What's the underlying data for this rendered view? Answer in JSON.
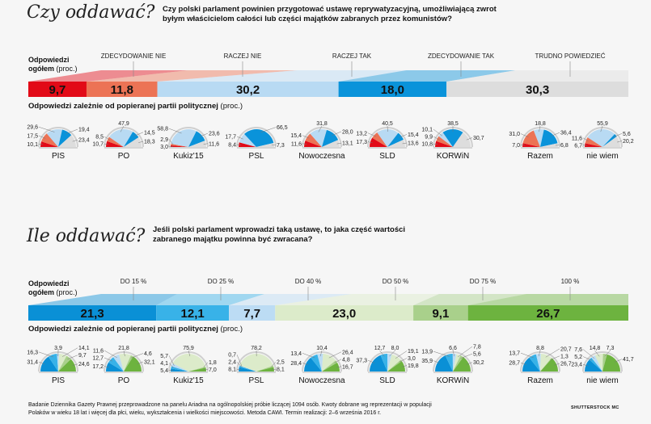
{
  "chart_data": [
    {
      "type": "bar",
      "section_title": "Czy oddawać?",
      "question": "Czy polski parlament powinien przygotować ustawę reprywatyzacyjną, umożliwiającą zwrot byłym właścicielom całości lub części majątków zabranych przez komunistów?",
      "overall_label": "Odpowiedzi",
      "overall_label2": "ogółem",
      "unit": "(proc.)",
      "parties_label": "Odpowiedzi  zależnie od popieranej partii politycznej",
      "categories": [
        "ZDECYDOWANIE NIE",
        "RACZEJ NIE",
        "RACZEJ TAK",
        "ZDECYDOWANIE TAK",
        "TRUDNO POWIEDZIEĆ"
      ],
      "colors": [
        "#e20a17",
        "#ec7355",
        "#b8daf3",
        "#0a93da",
        "#dddddd"
      ],
      "overall": [
        "9,7",
        "11,8",
        "30,2",
        "18,0",
        "30,3"
      ],
      "parties": [
        {
          "name": "PIS",
          "values": [
            "10,1",
            "17,5",
            "29,6",
            "19,4",
            "23,4"
          ]
        },
        {
          "name": "PO",
          "values": [
            "10,7",
            "8,5",
            "47,9",
            "14,5",
            "18,3"
          ]
        },
        {
          "name": "Kukiz'15",
          "values": [
            "3,0",
            "2,9",
            "58,8",
            "23,6",
            "11,6"
          ]
        },
        {
          "name": "PSL",
          "values": [
            "8,4",
            "",
            "17,7",
            "66,5",
            "7,3"
          ]
        },
        {
          "name": "Nowoczesna",
          "values": [
            "11,6",
            "15,4",
            "31,8",
            "28,0",
            "13,1"
          ]
        },
        {
          "name": "SLD",
          "values": [
            "17,3",
            "13,2",
            "40,5",
            "15,4",
            "13,6"
          ]
        },
        {
          "name": "KORWiN",
          "values": [
            "10,8",
            "9,9",
            "10,1",
            "38,5",
            "30,7"
          ]
        },
        {
          "name": "Razem",
          "values": [
            "7,0",
            "31,0",
            "18,8",
            "36,4",
            "6,8"
          ]
        },
        {
          "name": "nie wiem",
          "values": [
            "6,7",
            "11,6",
            "55,9",
            "5,6",
            "20,2"
          ]
        }
      ]
    },
    {
      "type": "bar",
      "section_title": "Ile oddawać?",
      "question": "Jeśli polski parlament wprowadzi taką ustawę, to jaka część wartości zabranego majątku powinna być zwracana?",
      "overall_label": "Odpowiedzi",
      "overall_label2": "ogółem",
      "unit": "(proc.)",
      "parties_label": "Odpowiedzi  zależnie od popieranej partii politycznej",
      "categories": [
        "DO 15 %",
        "DO 25 %",
        "DO 40 %",
        "DO 50 %",
        "DO 75 %",
        "100 %"
      ],
      "colors": [
        "#0a90d6",
        "#38b2e8",
        "#bcdcf4",
        "#dcebca",
        "#a9d08b",
        "#6db33f"
      ],
      "overall": [
        "21,3",
        "12,1",
        "7,7",
        "23,0",
        "9,1",
        "26,7"
      ],
      "parties": [
        {
          "name": "PIS",
          "values": [
            "31,4",
            "16,3",
            "3,9",
            "14,1",
            "9,7",
            "24,6"
          ]
        },
        {
          "name": "PO",
          "values": [
            "17,2",
            "12,7",
            "11,6",
            "21,8",
            "4,6",
            "32,1"
          ]
        },
        {
          "name": "Kukiz'15",
          "values": [
            "5,4",
            "4,1",
            "5,7",
            "75,9",
            "1,8",
            "7,0"
          ]
        },
        {
          "name": "PSL",
          "values": [
            "8,1",
            "2,4",
            "0,7",
            "78,2",
            "2,5",
            "8,1"
          ]
        },
        {
          "name": "Nowoczesna",
          "values": [
            "28,4",
            "13,4",
            "10,4",
            "26,4",
            "4,8",
            "16,7"
          ]
        },
        {
          "name": "SLD",
          "values": [
            "37,3",
            "12,7",
            "8,0",
            "19,1",
            "3,0",
            "19,8"
          ]
        },
        {
          "name": "KORWiN",
          "values": [
            "35,9",
            "13,9",
            "6,6",
            "7,8",
            "5,6",
            "30,2"
          ]
        },
        {
          "name": "Razem",
          "values": [
            "28,7",
            "13,7",
            "8,8",
            "20,7",
            "1,3",
            "26,7"
          ]
        },
        {
          "name": "nie wiem",
          "values": [
            "23,4",
            "5,2",
            "7,6",
            "14,8",
            "7,3",
            "41,7"
          ]
        }
      ]
    }
  ],
  "footer": "Badanie Dziennika Gazety Prawnej przeprowadzone na panelu Ariadna na ogólnopolskiej próbie liczącej 1094 osób. Kwoty dobrane wg reprezentacji w populacji Polaków w wieku 18 lat i więcej dla płci, wieku, wykształcenia i wielkości miejscowości. Metoda CAWI. Termin realizacji: 2–6 września 2016 r.",
  "credit": "SHUTTERSTOCK   MC"
}
